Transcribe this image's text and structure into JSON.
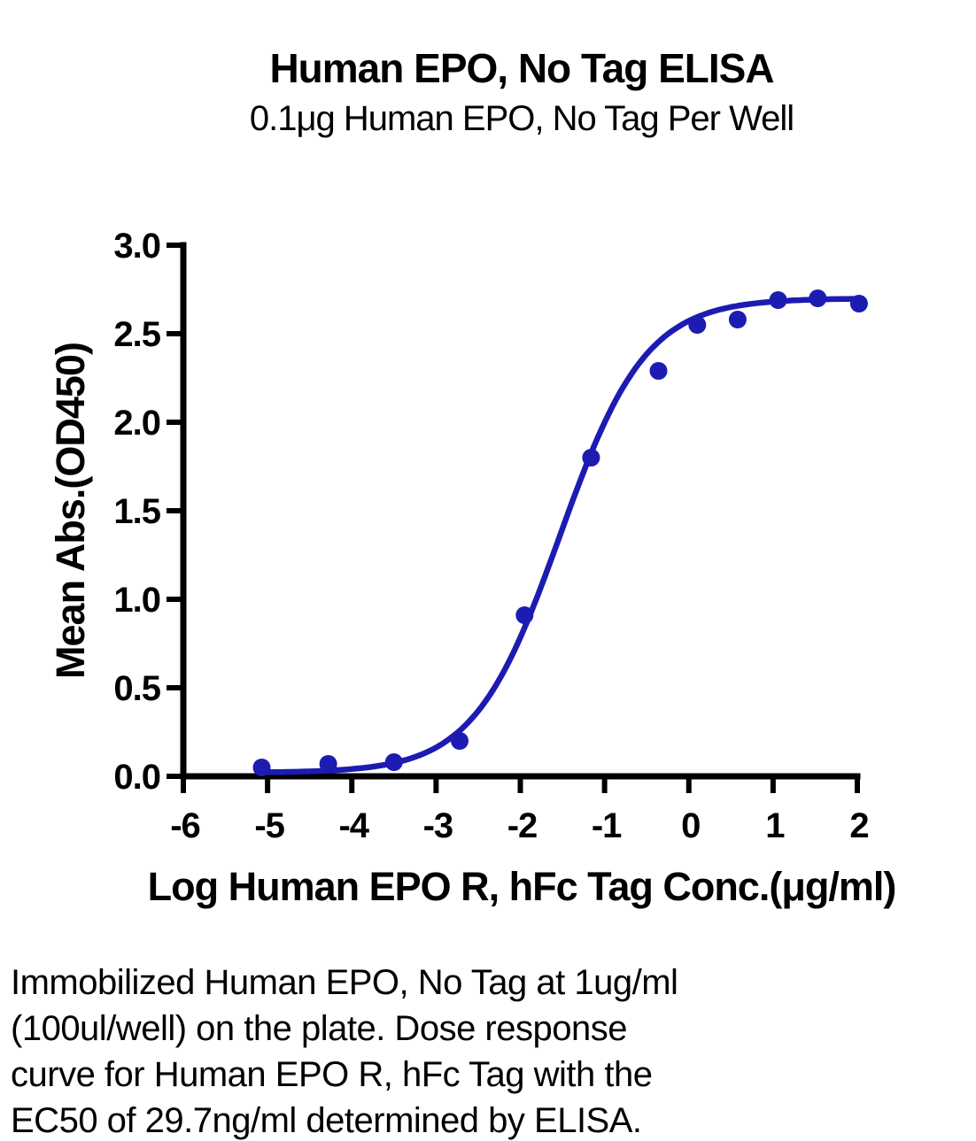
{
  "page_title": "Human EPO, No Tag ELISA",
  "chart_data": {
    "type": "scatter",
    "title": "Human EPO, No Tag ELISA",
    "subtitle": "0.1μg Human EPO, No Tag Per Well",
    "xlabel": "Log Human EPO R, hFc Tag Conc.(μg/ml)",
    "ylabel": "Mean Abs.(OD450)",
    "xlim": [
      -6,
      2
    ],
    "ylim": [
      0,
      3
    ],
    "grid": false,
    "xticks": [
      {
        "value": -6,
        "label": "-6"
      },
      {
        "value": -5,
        "label": "-5"
      },
      {
        "value": -4,
        "label": "-4"
      },
      {
        "value": -3,
        "label": "-3"
      },
      {
        "value": -2,
        "label": "-2"
      },
      {
        "value": -1,
        "label": "-1"
      },
      {
        "value": 0,
        "label": "0"
      },
      {
        "value": 1,
        "label": "1"
      },
      {
        "value": 2,
        "label": "2"
      }
    ],
    "yticks": [
      {
        "value": 0.0,
        "label": "0.0"
      },
      {
        "value": 0.5,
        "label": "0.5"
      },
      {
        "value": 1.0,
        "label": "1.0"
      },
      {
        "value": 1.5,
        "label": "1.5"
      },
      {
        "value": 2.0,
        "label": "2.0"
      },
      {
        "value": 2.5,
        "label": "2.5"
      },
      {
        "value": 3.0,
        "label": "3.0"
      }
    ],
    "series": [
      {
        "name": "Human EPO R, hFc Tag dose response",
        "color": "#1C1CB2",
        "points": [
          {
            "x": -5.07,
            "y": 0.05
          },
          {
            "x": -4.28,
            "y": 0.07
          },
          {
            "x": -3.5,
            "y": 0.08
          },
          {
            "x": -2.72,
            "y": 0.2
          },
          {
            "x": -1.95,
            "y": 0.91
          },
          {
            "x": -1.16,
            "y": 1.8
          },
          {
            "x": -0.36,
            "y": 2.29
          },
          {
            "x": 0.1,
            "y": 2.55
          },
          {
            "x": 0.58,
            "y": 2.58
          },
          {
            "x": 1.06,
            "y": 2.69
          },
          {
            "x": 1.53,
            "y": 2.7
          },
          {
            "x": 2.02,
            "y": 2.67
          }
        ],
        "fit_curve": {
          "model": "4PL-sigmoid",
          "bottom": 0.02,
          "top": 2.7,
          "log_ec50": -1.53,
          "hill": 0.85,
          "x_start": -5.07,
          "x_end": 2.02
        }
      }
    ],
    "ec50_text": "EC50 of 29.7ng/ml"
  },
  "caption": {
    "lines": [
      "Immobilized Human EPO, No Tag at 1ug/ml",
      "(100ul/well) on the plate. Dose response",
      "curve for Human EPO R, hFc Tag with the",
      "EC50 of 29.7ng/ml determined by ELISA."
    ]
  }
}
